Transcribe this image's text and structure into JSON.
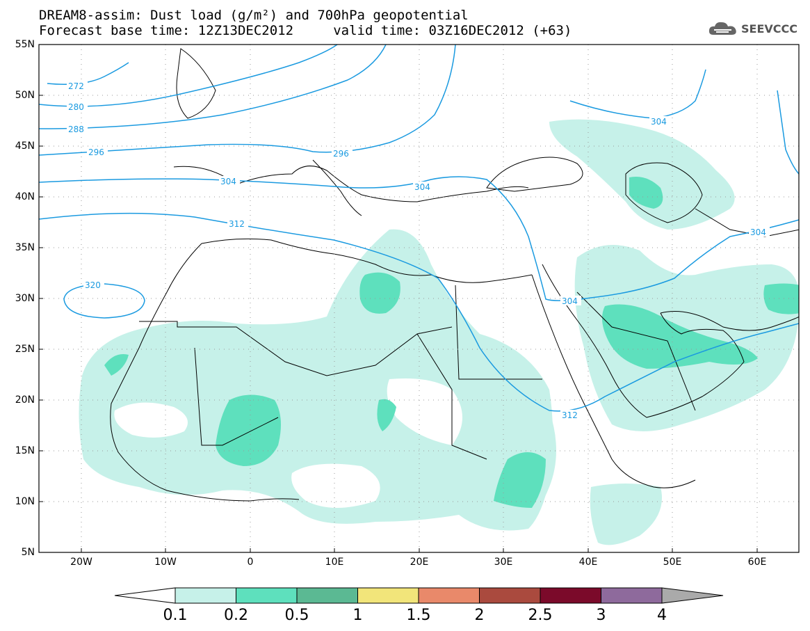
{
  "header": {
    "title_line1": "DREAM8-assim: Dust load (g/m²) and 700hPa geopotential",
    "title_line2": "Forecast base time: 12Z13DEC2012     valid time: 03Z16DEC2012 (+63)",
    "logo_text": "SEEVCCC"
  },
  "map": {
    "projection": "lat-lon",
    "lon_range": [
      -25,
      65
    ],
    "lat_range": [
      5,
      55
    ],
    "lat_ticks": [
      "55N",
      "50N",
      "45N",
      "40N",
      "35N",
      "30N",
      "25N",
      "20N",
      "15N",
      "10N",
      "5N"
    ],
    "lon_ticks": [
      "20W",
      "10W",
      "0",
      "10E",
      "20E",
      "30E",
      "40E",
      "50E",
      "60E"
    ],
    "contour_color": "#1a9ae0",
    "geopotential_contours": [
      {
        "label": "272"
      },
      {
        "label": "280"
      },
      {
        "label": "288"
      },
      {
        "label": "296"
      },
      {
        "label": "304"
      },
      {
        "label": "312"
      },
      {
        "label": "320"
      }
    ],
    "grid": true
  },
  "colorbar": {
    "labels": [
      "0.1",
      "0.2",
      "0.5",
      "1",
      "1.5",
      "2",
      "2.5",
      "3",
      "4"
    ],
    "colors": [
      "#c6f1e9",
      "#5ee0bd",
      "#5bb993",
      "#f2e57a",
      "#e9896a",
      "#aa4a3e",
      "#7b0a2a",
      "#8e6a9c",
      "#aaaaaa"
    ]
  }
}
